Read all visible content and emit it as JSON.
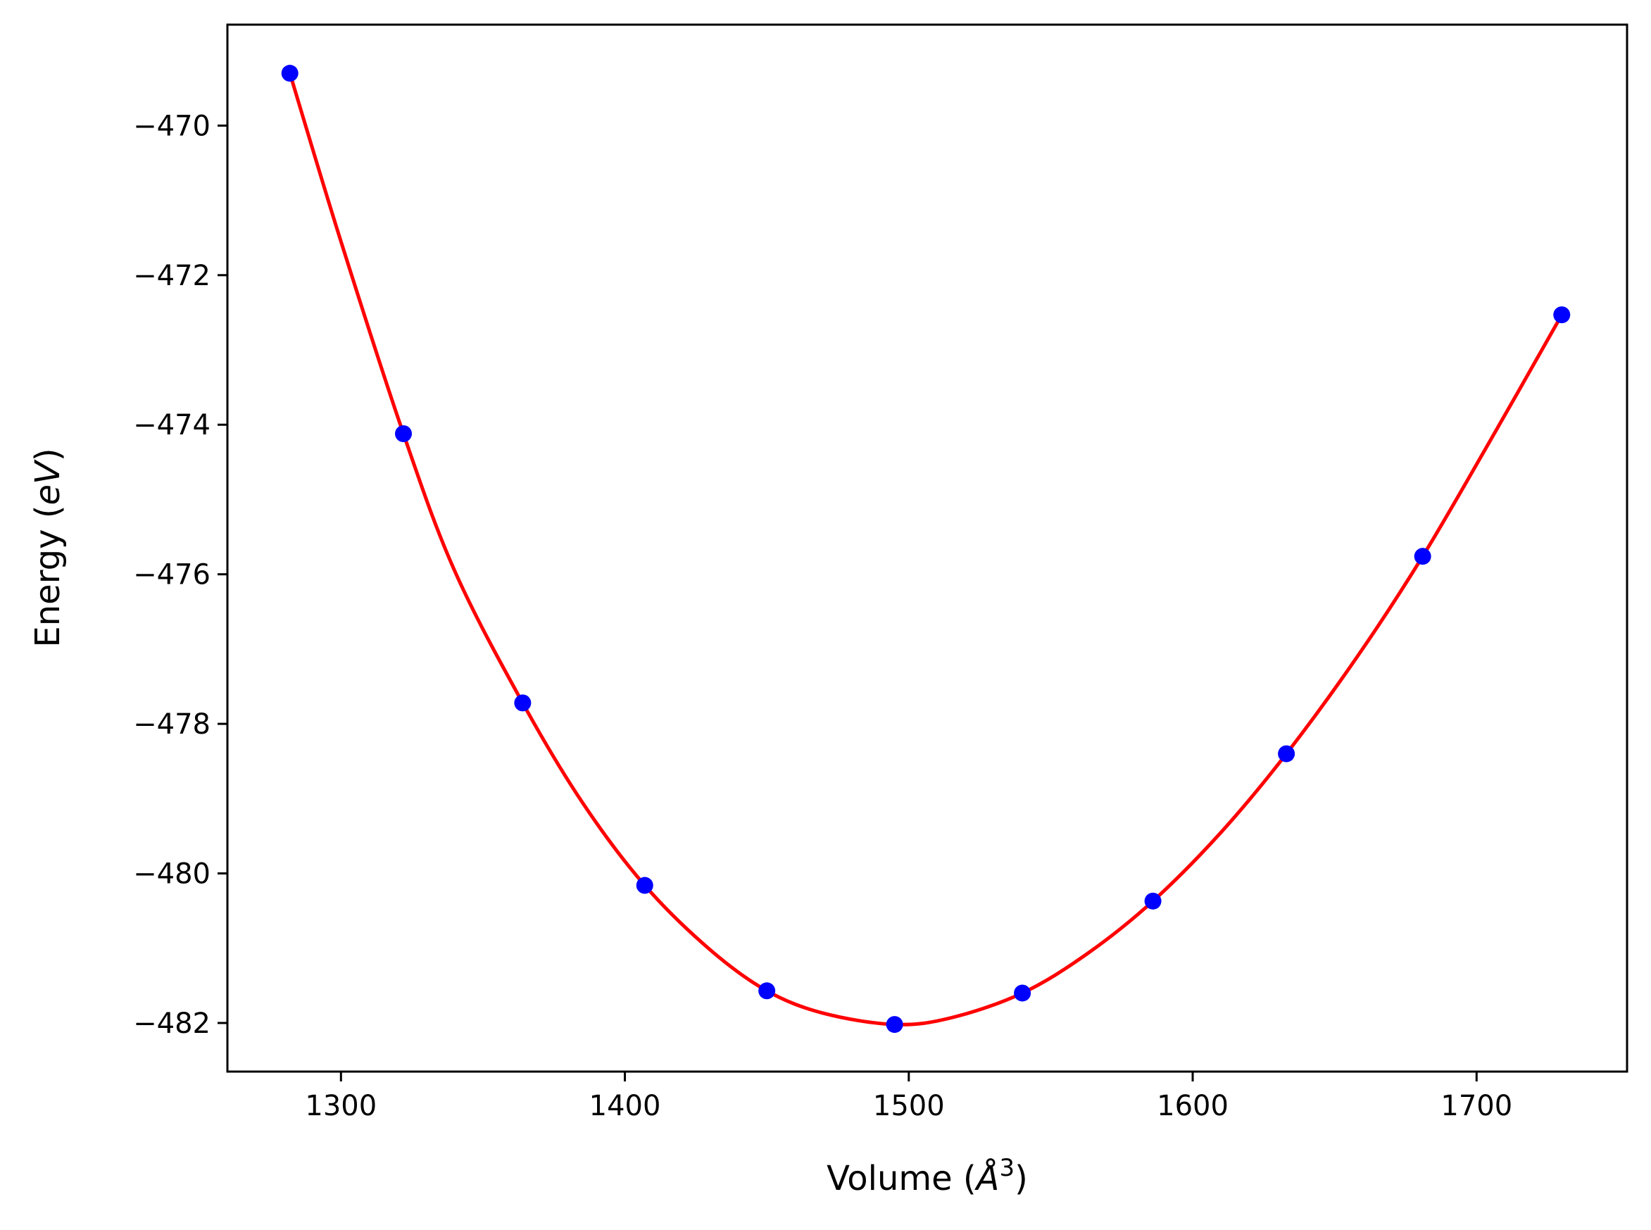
{
  "chart_data": {
    "type": "line",
    "title": "",
    "xlabel": {
      "prefix": "Volume (",
      "italic": "Å",
      "sup": "3",
      "suffix": ")"
    },
    "ylabel": {
      "prefix": "Energy (",
      "italic": "eV",
      "suffix": ")"
    },
    "xlim": [
      1260,
      1753
    ],
    "ylim": [
      -482.65,
      -468.65
    ],
    "xticks": [
      1300,
      1400,
      1500,
      1600,
      1700
    ],
    "xtick_labels": [
      "1300",
      "1400",
      "1500",
      "1600",
      "1700"
    ],
    "yticks": [
      -470,
      -472,
      -474,
      -476,
      -478,
      -480,
      -482
    ],
    "ytick_labels": [
      "−470",
      "−472",
      "−474",
      "−476",
      "−478",
      "−480",
      "−482"
    ],
    "grid": false,
    "series": [
      {
        "kind": "scatter",
        "color": "#0000ff",
        "x": [
          1282,
          1322,
          1364,
          1407,
          1450,
          1495,
          1540,
          1586,
          1633,
          1681,
          1730
        ],
        "y": [
          -469.3,
          -474.12,
          -477.72,
          -480.16,
          -481.57,
          -482.02,
          -481.6,
          -480.37,
          -478.4,
          -475.76,
          -472.53
        ]
      },
      {
        "kind": "line",
        "color": "#ff0000",
        "x": [
          1282,
          1300,
          1322,
          1340,
          1364,
          1385,
          1407,
          1430,
          1450,
          1470,
          1495,
          1515,
          1540,
          1563,
          1586,
          1610,
          1633,
          1658,
          1681,
          1705,
          1730
        ],
        "y": [
          -469.3,
          -471.55,
          -474.12,
          -475.95,
          -477.72,
          -479.05,
          -480.16,
          -481.02,
          -481.57,
          -481.87,
          -482.02,
          -481.93,
          -481.6,
          -481.07,
          -480.37,
          -479.45,
          -478.4,
          -477.1,
          -475.76,
          -474.2,
          -472.53
        ]
      }
    ]
  }
}
